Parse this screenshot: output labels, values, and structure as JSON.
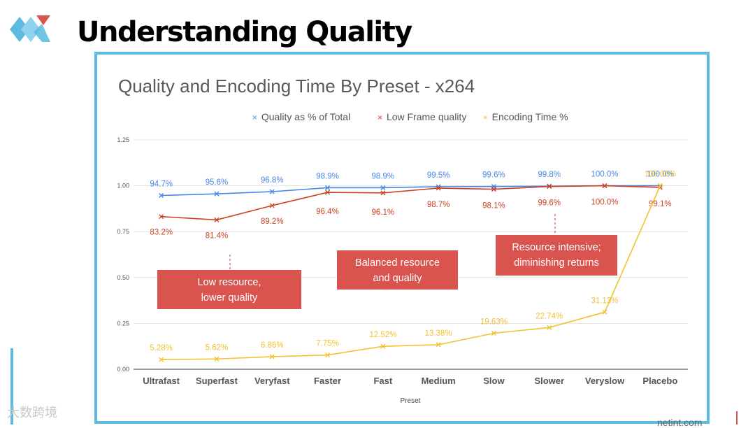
{
  "slide": {
    "title": "Understanding Quality",
    "footer_url": "netint.com",
    "watermark": "大数跨境"
  },
  "colors": {
    "quality": "#4a86e8",
    "low_frame": "#cc4125",
    "encoding": "#f1c232",
    "callout": "#d9534f",
    "frame": "#5bbbe0"
  },
  "chart_data": {
    "type": "line",
    "title": "Quality and Encoding Time By Preset - x264",
    "xlabel": "Preset",
    "ylabel": "",
    "ylim": [
      0,
      1.25
    ],
    "yticks": [
      "0.00",
      "0.25",
      "0.50",
      "0.75",
      "1.00",
      "1.25"
    ],
    "ytick_values": [
      0,
      0.25,
      0.5,
      0.75,
      1.0,
      1.25
    ],
    "categories": [
      "Ultrafast",
      "Superfast",
      "Veryfast",
      "Faster",
      "Fast",
      "Medium",
      "Slow",
      "Slower",
      "Veryslow",
      "Placebo"
    ],
    "legend": [
      "Quality as % of Total",
      "Low Frame quality",
      "Encoding Time %"
    ],
    "series": [
      {
        "name": "Quality as % of Total",
        "values": [
          0.947,
          0.956,
          0.968,
          0.989,
          0.989,
          0.995,
          0.996,
          0.998,
          1.0,
          1.0
        ],
        "labels": [
          "94.7%",
          "95.6%",
          "96.8%",
          "98.9%",
          "98.9%",
          "99.5%",
          "99.6%",
          "99.8%",
          "100.0%",
          "100.0%"
        ]
      },
      {
        "name": "Low Frame quality",
        "values": [
          0.832,
          0.814,
          0.892,
          0.964,
          0.961,
          0.987,
          0.981,
          0.996,
          1.0,
          0.991
        ],
        "labels": [
          "83.2%",
          "81.4%",
          "89.2%",
          "96.4%",
          "96.1%",
          "98.7%",
          "98.1%",
          "99.6%",
          "100.0%",
          "99.1%"
        ]
      },
      {
        "name": "Encoding Time %",
        "values": [
          0.0528,
          0.0562,
          0.0686,
          0.0775,
          0.1252,
          0.1338,
          0.1963,
          0.2274,
          0.3113,
          1.0
        ],
        "labels": [
          "5.28%",
          "5.62%",
          "6.86%",
          "7.75%",
          "12.52%",
          "13.38%",
          "19.63%",
          "22.74%",
          "31.13%",
          "100.00%"
        ]
      }
    ],
    "annotations": [
      {
        "lines": [
          "Low resource,",
          "lower quality"
        ]
      },
      {
        "lines": [
          "Balanced resource",
          "and quality"
        ]
      },
      {
        "lines": [
          "Resource intensive;",
          "diminishing returns"
        ]
      }
    ]
  }
}
